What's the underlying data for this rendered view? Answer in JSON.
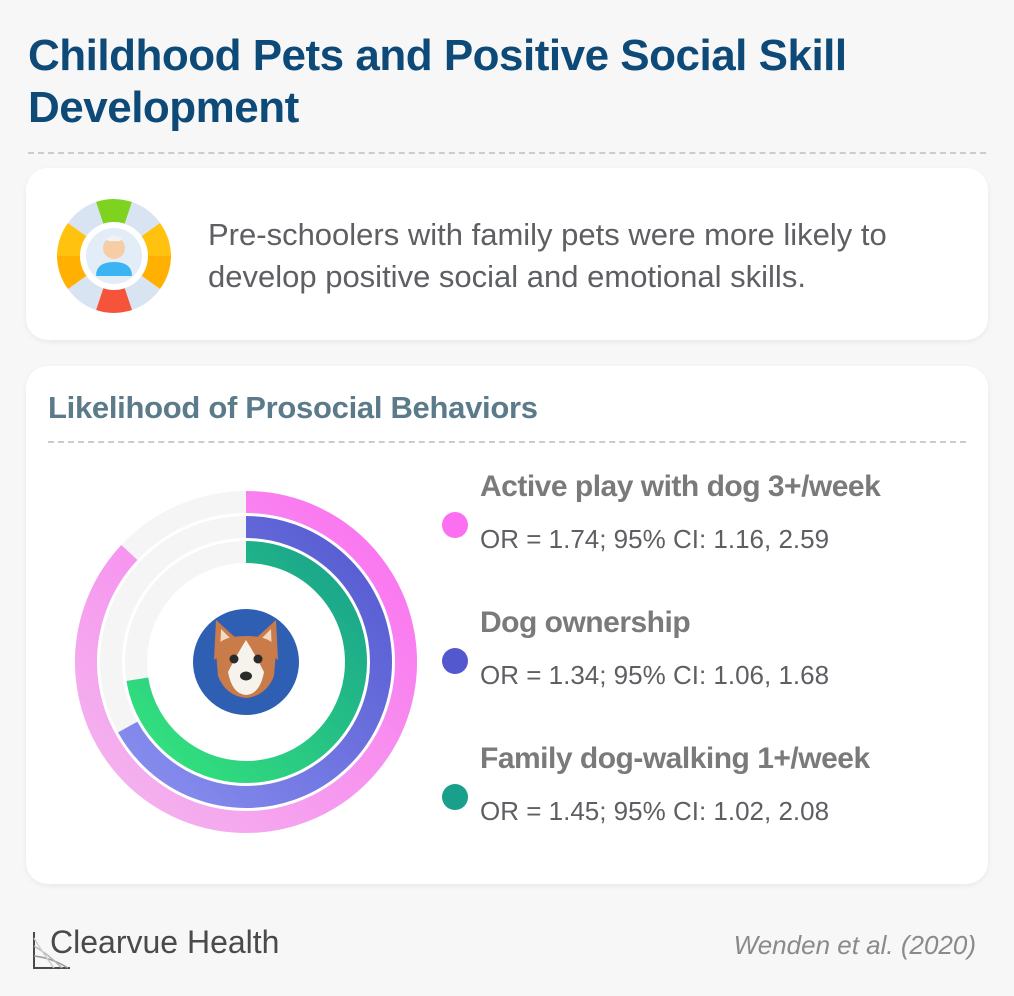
{
  "title": "Childhood Pets and Positive Social Skill Development",
  "summary": {
    "text": "Pre-schoolers with family pets were more likely to develop positive social and emotional skills.",
    "icon": "child-social-wheel-icon"
  },
  "chart_data": {
    "type": "radial-bar",
    "title": "Likelihood of Prosocial Behaviors",
    "center_icon": "dog-face-icon",
    "series": [
      {
        "name": "Active play with dog 3+/week",
        "value": 1.74,
        "stat": "OR = 1.74; 95% CI: 1.16, 2.59",
        "color": "#fb6ff0",
        "color_light": "#f3b9ee"
      },
      {
        "name": "Dog ownership",
        "value": 1.34,
        "stat": "OR = 1.34; 95% CI: 1.06, 1.68",
        "color": "#5358cf",
        "color_light": "#8a8ff0"
      },
      {
        "name": "Family dog-walking 1+/week",
        "value": 1.45,
        "stat": "OR = 1.45; 95% CI: 1.02, 2.08",
        "color": "#18a08c",
        "color_light": "#35e67c"
      }
    ],
    "value_max": 2.0
  },
  "footer": {
    "brand": "Clearvue Health",
    "citation": "Wenden et al. (2020)"
  }
}
